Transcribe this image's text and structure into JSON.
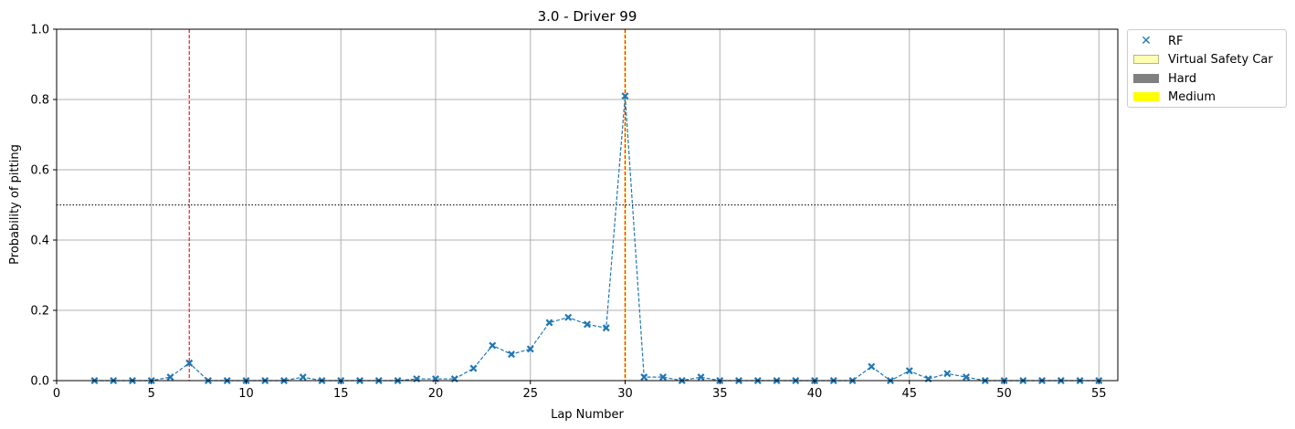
{
  "chart_data": {
    "type": "scatter",
    "title": "3.0 - Driver 99",
    "xlabel": "Lap Number",
    "ylabel": "Probability of pitting",
    "xlim": [
      0,
      56
    ],
    "ylim": [
      0,
      1.0
    ],
    "xticks": [
      0,
      5,
      10,
      15,
      20,
      25,
      30,
      35,
      40,
      45,
      50,
      55
    ],
    "yticks": [
      0.0,
      0.2,
      0.4,
      0.6,
      0.8,
      1.0
    ],
    "grid": true,
    "threshold": 0.5,
    "legend_position": "outside-top-right",
    "pit_laps": [
      {
        "lap": 7,
        "color": "#ff0000"
      },
      {
        "lap": 30,
        "color": "#ff0000"
      }
    ],
    "vsc_laps": [
      30
    ],
    "series": [
      {
        "name": "RF",
        "color": "#1f77b4",
        "marker": "x",
        "x": [
          2,
          3,
          4,
          5,
          6,
          7,
          8,
          9,
          10,
          11,
          12,
          13,
          14,
          15,
          16,
          17,
          18,
          19,
          20,
          21,
          22,
          23,
          24,
          25,
          26,
          27,
          28,
          29,
          30,
          31,
          32,
          33,
          34,
          35,
          36,
          37,
          38,
          39,
          40,
          41,
          42,
          43,
          44,
          45,
          46,
          47,
          48,
          49,
          50,
          51,
          52,
          53,
          54,
          55
        ],
        "y": [
          0.0,
          0.0,
          0.0,
          0.0,
          0.01,
          0.05,
          0.0,
          0.0,
          0.0,
          0.0,
          0.0,
          0.01,
          0.0,
          0.0,
          0.0,
          0.0,
          0.0,
          0.005,
          0.005,
          0.005,
          0.035,
          0.1,
          0.075,
          0.09,
          0.165,
          0.18,
          0.16,
          0.15,
          0.81,
          0.01,
          0.01,
          0.0,
          0.01,
          0.0,
          0.0,
          0.0,
          0.0,
          0.0,
          0.0,
          0.0,
          0.0,
          0.04,
          0.0,
          0.028,
          0.005,
          0.02,
          0.01,
          0.0,
          0.0,
          0.0,
          0.0,
          0.0,
          0.0,
          0.0
        ]
      }
    ],
    "legend_entries": [
      {
        "label": "RF",
        "kind": "marker",
        "color": "#1f77b4"
      },
      {
        "label": "Virtual Safety Car",
        "kind": "patch",
        "color": "#ffffb3",
        "edge": "#b5b58a"
      },
      {
        "label": "Hard",
        "kind": "patch",
        "color": "#808080"
      },
      {
        "label": "Medium",
        "kind": "patch",
        "color": "#ffff00"
      }
    ]
  }
}
